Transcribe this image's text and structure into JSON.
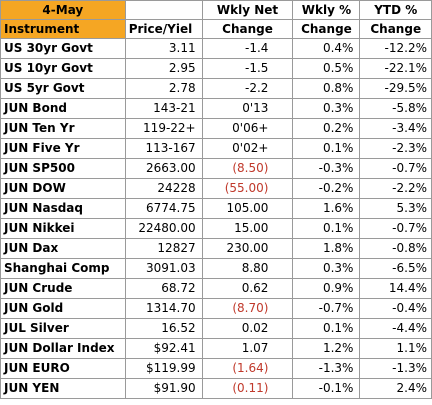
{
  "header": {
    "date": "4-May",
    "instrument": "Instrument",
    "price": "Price/Yiel",
    "wkly_net_1": "Wkly Net",
    "wkly_net_2": "Change",
    "wkly_pct_1": "Wkly %",
    "wkly_pct_2": "Change",
    "ytd_pct_1": "YTD %",
    "ytd_pct_2": "Change"
  },
  "rows": [
    {
      "instrument": "US 30yr Govt",
      "price": "3.11",
      "wkly_net": "-1.4",
      "wkly_pct": "0.4%",
      "ytd_pct": "-12.2%"
    },
    {
      "instrument": "US 10yr Govt",
      "price": "2.95",
      "wkly_net": "-1.5",
      "wkly_pct": "0.5%",
      "ytd_pct": "-22.1%"
    },
    {
      "instrument": "US 5yr   Govt",
      "price": "2.78",
      "wkly_net": "-2.2",
      "wkly_pct": "0.8%",
      "ytd_pct": "-29.5%"
    },
    {
      "instrument": "JUN Bond",
      "price": "143-21",
      "wkly_net": "0'13",
      "wkly_pct": "0.3%",
      "ytd_pct": "-5.8%"
    },
    {
      "instrument": "JUN Ten Yr",
      "price": "119-22+",
      "wkly_net": "0'06+",
      "wkly_pct": "0.2%",
      "ytd_pct": "-3.4%"
    },
    {
      "instrument": "JUN Five Yr",
      "price": "113-167",
      "wkly_net": "0'02+",
      "wkly_pct": "0.1%",
      "ytd_pct": "-2.3%"
    },
    {
      "instrument": "JUN SP500",
      "price": "2663.00",
      "wkly_net": "(8.50)",
      "wkly_pct": "-0.3%",
      "ytd_pct": "-0.7%"
    },
    {
      "instrument": "JUN DOW",
      "price": "24228",
      "wkly_net": "(55.00)",
      "wkly_pct": "-0.2%",
      "ytd_pct": "-2.2%"
    },
    {
      "instrument": "JUN Nasdaq",
      "price": "6774.75",
      "wkly_net": "105.00",
      "wkly_pct": "1.6%",
      "ytd_pct": "5.3%"
    },
    {
      "instrument": "JUN Nikkei",
      "price": "22480.00",
      "wkly_net": "15.00",
      "wkly_pct": "0.1%",
      "ytd_pct": "-0.7%"
    },
    {
      "instrument": "JUN Dax",
      "price": "12827",
      "wkly_net": "230.00",
      "wkly_pct": "1.8%",
      "ytd_pct": "-0.8%"
    },
    {
      "instrument": "Shanghai Comp",
      "price": "3091.03",
      "wkly_net": "8.80",
      "wkly_pct": "0.3%",
      "ytd_pct": "-6.5%"
    },
    {
      "instrument": "JUN Crude",
      "price": "68.72",
      "wkly_net": "0.62",
      "wkly_pct": "0.9%",
      "ytd_pct": "14.4%"
    },
    {
      "instrument": "JUN Gold",
      "price": "1314.70",
      "wkly_net": "(8.70)",
      "wkly_pct": "-0.7%",
      "ytd_pct": "-0.4%"
    },
    {
      "instrument": "JUL Silver",
      "price": "16.52",
      "wkly_net": "0.02",
      "wkly_pct": "0.1%",
      "ytd_pct": "-4.4%"
    },
    {
      "instrument": "JUN Dollar Index",
      "price": "$92.41",
      "wkly_net": "1.07",
      "wkly_pct": "1.2%",
      "ytd_pct": "1.1%"
    },
    {
      "instrument": "JUN EURO",
      "price": "$119.99",
      "wkly_net": "(1.64)",
      "wkly_pct": "-1.3%",
      "ytd_pct": "-1.3%"
    },
    {
      "instrument": "JUN YEN",
      "price": "$91.90",
      "wkly_net": "(0.11)",
      "wkly_pct": "-0.1%",
      "ytd_pct": "2.4%"
    }
  ],
  "colors": {
    "header_accent": "#f5a623",
    "negative": "#c0392b"
  }
}
